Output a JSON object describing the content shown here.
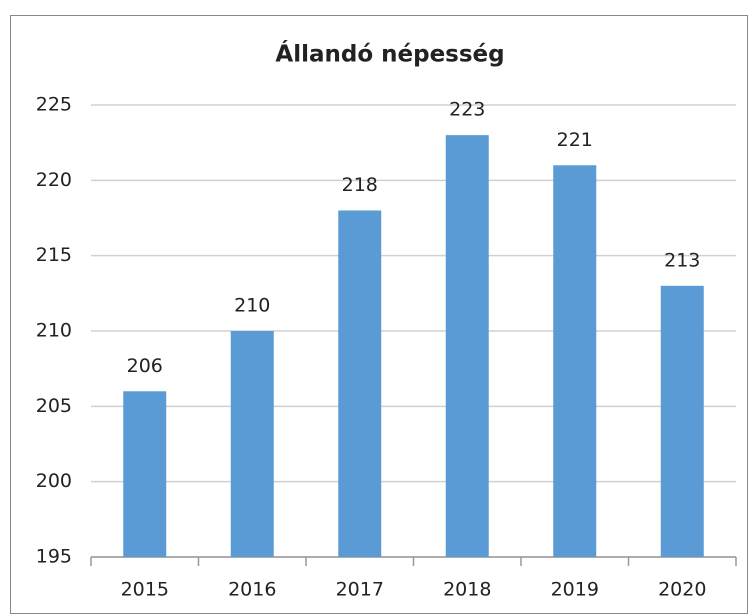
{
  "chart_data": {
    "type": "bar",
    "title": "Állandó népesség",
    "categories": [
      "2015",
      "2016",
      "2017",
      "2018",
      "2019",
      "2020"
    ],
    "values": [
      206,
      210,
      218,
      223,
      221,
      213
    ],
    "color": "#5b9bd5",
    "ylim": [
      195,
      225
    ],
    "yticks": [
      195,
      200,
      205,
      210,
      215,
      220,
      225
    ],
    "grid": true
  }
}
